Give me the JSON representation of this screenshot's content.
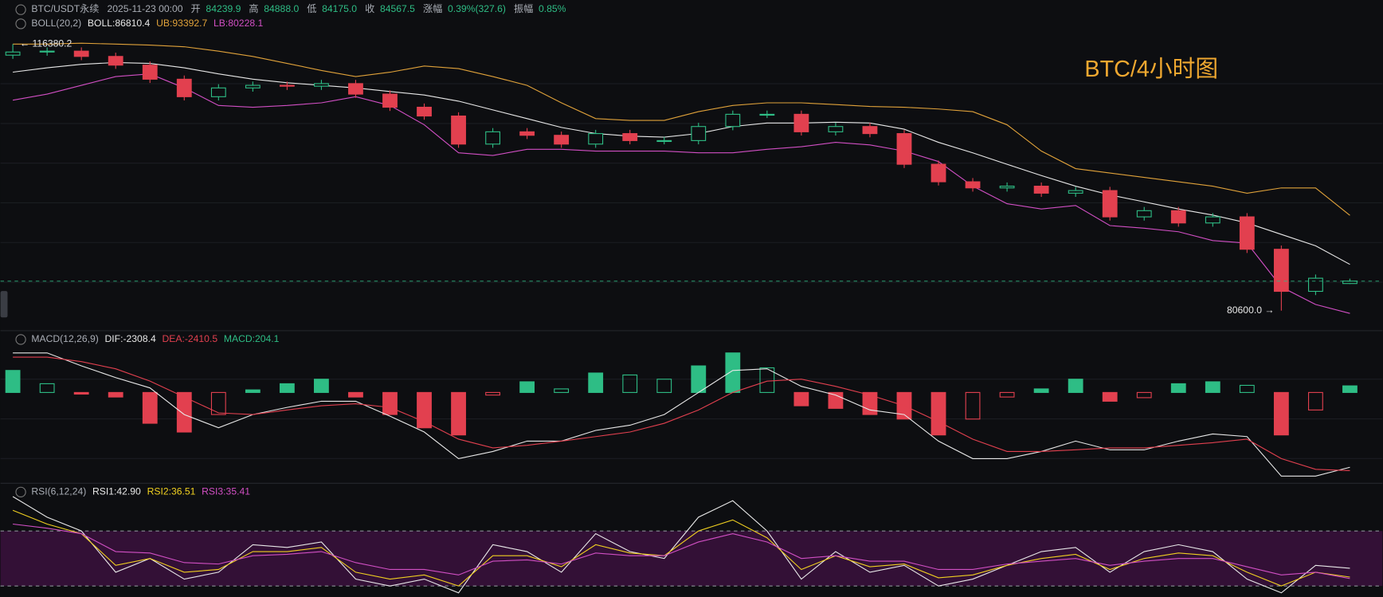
{
  "header": {
    "symbol": "BTC/USDT永续",
    "time": "2025-11-23 00:00",
    "open_label": "开",
    "open": "84239.9",
    "high_label": "高",
    "high": "84888.0",
    "low_label": "低",
    "low": "84175.0",
    "close_label": "收",
    "close": "84567.5",
    "change_label": "涨幅",
    "change": "0.39%(327.6)",
    "amplitude_label": "振幅",
    "amplitude": "0.85%"
  },
  "chart_data": [
    {
      "type": "candlestick",
      "title": "BTC/4小时图",
      "indicator": "BOLL(20,2)",
      "ylim": [
        78500,
        119700
      ],
      "up_color": "#2ebd85",
      "down_color": "#e2404f",
      "annotations": [
        {
          "text": "← 116380.2"
        },
        {
          "text": "80600.0 →"
        }
      ],
      "open": [
        114900,
        115320,
        115440,
        114730,
        113560,
        111670,
        109320,
        110500,
        110850,
        110730,
        111080,
        109670,
        107910,
        106730,
        102960,
        104610,
        104140,
        102960,
        104370,
        103430,
        103430,
        105320,
        106960,
        106960,
        104610,
        105320,
        104370,
        100250,
        97900,
        97080,
        97310,
        96370,
        96720,
        93190,
        94020,
        92370,
        93190,
        88840,
        83190,
        84239.9
      ],
      "high": [
        116380.2,
        115940,
        115940,
        115230,
        114060,
        112170,
        111000,
        111350,
        111350,
        111580,
        111580,
        110170,
        108410,
        107230,
        105110,
        105110,
        104640,
        104870,
        104870,
        103930,
        105820,
        107460,
        107460,
        107460,
        105820,
        105820,
        104870,
        100750,
        98400,
        97810,
        97810,
        97220,
        97220,
        94520,
        94520,
        93690,
        93690,
        89340,
        85450,
        84888.0
      ],
      "low": [
        114400,
        114820,
        114230,
        113060,
        111170,
        108820,
        108820,
        110000,
        110230,
        110230,
        109170,
        107410,
        106230,
        102460,
        102460,
        103640,
        102460,
        102460,
        102930,
        102930,
        102930,
        104820,
        106460,
        104110,
        104110,
        103870,
        99750,
        97400,
        96580,
        96580,
        95870,
        95870,
        92690,
        92690,
        91870,
        91870,
        88340,
        80600,
        82690,
        84175.0
      ],
      "close": [
        115320,
        115440,
        114730,
        113560,
        111670,
        109320,
        110500,
        110850,
        110730,
        111080,
        109670,
        107910,
        106730,
        102960,
        104610,
        104140,
        102960,
        104370,
        103430,
        103430,
        105320,
        106960,
        106960,
        104610,
        105320,
        104370,
        100250,
        97900,
        97080,
        97310,
        96370,
        96720,
        93190,
        94020,
        92370,
        93190,
        88840,
        83190,
        84950,
        84567.5
      ],
      "series": [
        {
          "label": "BOLL:86810.4",
          "color": "#e8e8e8",
          "values": [
            112620,
            113200,
            113670,
            113910,
            113790,
            113200,
            112380,
            111670,
            111200,
            110850,
            110500,
            110020,
            109550,
            108730,
            107550,
            106380,
            105200,
            104380,
            104020,
            103900,
            104380,
            105320,
            105790,
            105790,
            105900,
            105790,
            104960,
            103200,
            101790,
            100250,
            98730,
            97310,
            96140,
            95200,
            94250,
            93430,
            92370,
            90840,
            89310,
            86810.4
          ]
        },
        {
          "label": "UB:93392.7",
          "color": "#e0a23a",
          "values": [
            116380,
            116380,
            116500,
            116380,
            116260,
            116030,
            115440,
            114730,
            113790,
            112850,
            112030,
            112610,
            113440,
            113090,
            112030,
            110850,
            108500,
            106380,
            106140,
            106140,
            107320,
            108140,
            108500,
            108500,
            108260,
            108020,
            107910,
            107670,
            107320,
            105550,
            102020,
            99670,
            99080,
            98490,
            97900,
            97310,
            96370,
            97080,
            97080,
            93392.7
          ]
        },
        {
          "label": "LB:80228.1",
          "color": "#d14fc4",
          "values": [
            108850,
            109670,
            110850,
            112030,
            112380,
            110500,
            108140,
            107910,
            108140,
            108500,
            109320,
            108140,
            105550,
            101790,
            101430,
            102260,
            102260,
            102020,
            102020,
            102020,
            101790,
            101790,
            102260,
            102610,
            103200,
            102850,
            102020,
            100610,
            97310,
            94960,
            94250,
            94720,
            92020,
            91670,
            91190,
            90010,
            89660,
            83780,
            81420,
            80228.1
          ]
        }
      ]
    },
    {
      "type": "macd",
      "indicator": "MACD(12,26,9)",
      "ylim": [
        -2800,
        1770
      ],
      "series": [
        {
          "label": "DIF:-2308.4",
          "color": "#e8e8e8",
          "values": [
            1220,
            1220,
            820,
            460,
            140,
            -680,
            -1090,
            -680,
            -460,
            -270,
            -270,
            -730,
            -1220,
            -2040,
            -1820,
            -1500,
            -1500,
            -1170,
            -1010,
            -680,
            0,
            680,
            730,
            190,
            -80,
            -540,
            -680,
            -1500,
            -2040,
            -2040,
            -1820,
            -1500,
            -1770,
            -1770,
            -1500,
            -1280,
            -1360,
            -2580,
            -2580,
            -2308.4
          ]
        },
        {
          "label": "DEA:-2410.5",
          "color": "#e2404f",
          "values": [
            1090,
            1090,
            950,
            730,
            350,
            -140,
            -630,
            -680,
            -540,
            -410,
            -350,
            -460,
            -900,
            -1440,
            -1710,
            -1630,
            -1500,
            -1360,
            -1220,
            -950,
            -540,
            0,
            350,
            410,
            190,
            -80,
            -410,
            -900,
            -1440,
            -1820,
            -1820,
            -1770,
            -1710,
            -1710,
            -1630,
            -1550,
            -1440,
            -2040,
            -2370,
            -2410.5
          ]
        },
        {
          "label": "MACD:204.1",
          "color": "#2ebd85",
          "neg_color": "#e2404f",
          "kind": "histogram",
          "values": [
            680,
            270,
            -50,
            -140,
            -950,
            -1220,
            -680,
            80,
            270,
            410,
            -140,
            -680,
            -1090,
            -1310,
            -80,
            330,
            110,
            600,
            540,
            410,
            820,
            1220,
            760,
            -410,
            -490,
            -680,
            -820,
            -1310,
            -820,
            -140,
            110,
            410,
            -270,
            -160,
            270,
            330,
            220,
            -1310,
            -540,
            204.1
          ]
        }
      ]
    },
    {
      "type": "line",
      "indicator": "RSI(6,12,24)",
      "ylim": [
        22,
        97
      ],
      "levels": [
        70,
        30
      ],
      "band_color": "#3d1240",
      "series": [
        {
          "label": "RSI1:42.90",
          "color": "#e8e8e8",
          "values": [
            95,
            80,
            70,
            40,
            50,
            35,
            40,
            60,
            58,
            62,
            35,
            30,
            35,
            25,
            60,
            55,
            40,
            68,
            55,
            50,
            80,
            92,
            70,
            35,
            55,
            40,
            45,
            30,
            35,
            45,
            55,
            58,
            40,
            55,
            60,
            55,
            35,
            25,
            45,
            42.9
          ]
        },
        {
          "label": "RSI2:36.51",
          "color": "#f0d020",
          "values": [
            85,
            75,
            68,
            45,
            50,
            40,
            42,
            55,
            55,
            58,
            40,
            35,
            38,
            30,
            52,
            52,
            44,
            60,
            54,
            52,
            70,
            78,
            65,
            42,
            52,
            44,
            46,
            36,
            38,
            45,
            50,
            53,
            42,
            50,
            54,
            52,
            40,
            30,
            40,
            36.51
          ]
        },
        {
          "label": "RSI3:35.41",
          "color": "#d14fc4",
          "values": [
            75,
            72,
            68,
            55,
            54,
            47,
            46,
            52,
            53,
            55,
            47,
            42,
            42,
            38,
            48,
            49,
            46,
            54,
            52,
            52,
            62,
            68,
            62,
            50,
            52,
            48,
            48,
            42,
            42,
            46,
            48,
            50,
            45,
            48,
            50,
            50,
            44,
            38,
            40,
            35.41
          ]
        }
      ]
    }
  ]
}
